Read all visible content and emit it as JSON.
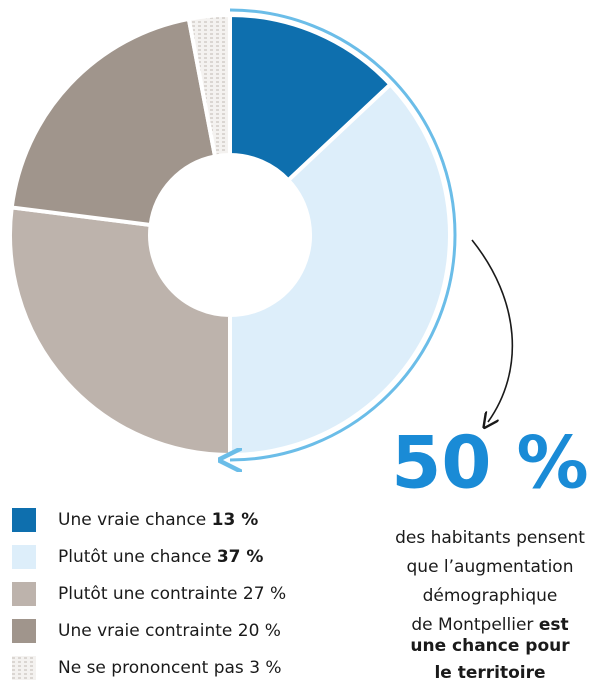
{
  "chart_data": {
    "type": "pie",
    "categories": [
      "Une vraie chance",
      "Plutôt une chance",
      "Plutôt une contrainte",
      "Une vraie contrainte",
      "Ne se prononcent pas"
    ],
    "values": [
      13,
      37,
      27,
      20,
      3
    ],
    "value_labels": [
      "13 %",
      "37 %",
      "27 %",
      "20 %",
      "3 %"
    ],
    "bold_value_labels": [
      true,
      true,
      false,
      false,
      false
    ],
    "colors": [
      "#0e6fae",
      "#ddeefa",
      "#bdb3ac",
      "#a0958c",
      "#e4e0dc"
    ],
    "pattern": [
      false,
      false,
      false,
      false,
      true
    ],
    "annotation": {
      "value_label": "50 %",
      "text_lines": [
        "des habitants pensent",
        "que l’augmentation",
        "démographique",
        "de Montpellier"
      ],
      "emphasis_lines": [
        "est",
        "une chance pour",
        "le territoire"
      ]
    }
  }
}
